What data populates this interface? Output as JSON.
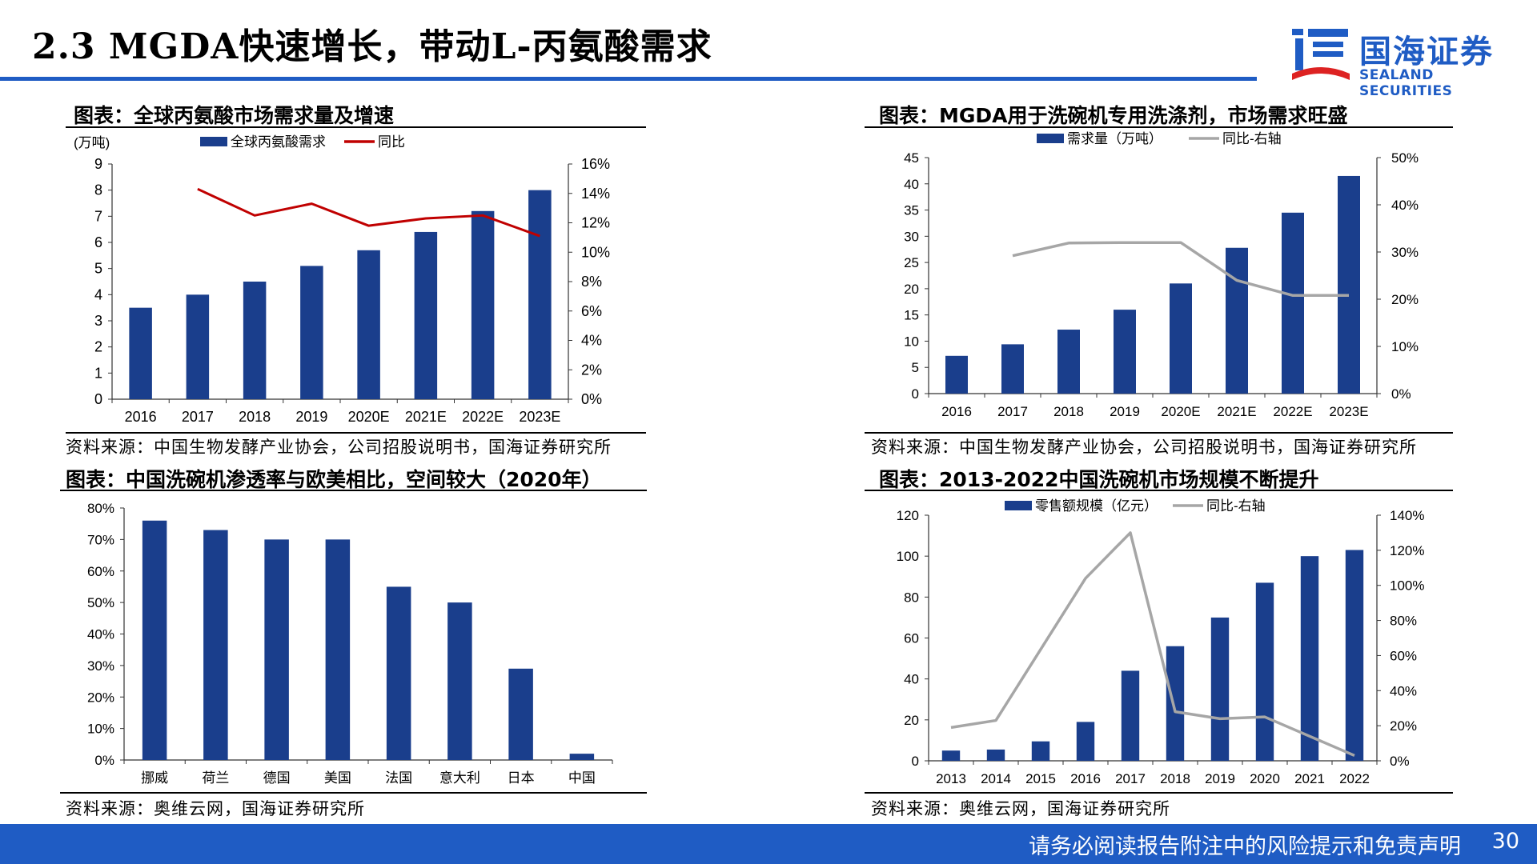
{
  "slide": {
    "title": "2.3 MGDA快速增长，带动L-丙氨酸需求",
    "logo_cn": "国海证券",
    "logo_en": "SEALAND SECURITIES",
    "footer": "请务必阅读报告附注中的风险提示和免责声明",
    "page": "30"
  },
  "colors": {
    "bar": "#1a3e8c",
    "accent": "#1f5cc4",
    "red_line": "#c00000",
    "gray_line": "#a6a6a6"
  },
  "panels": [
    {
      "title": "图表：全球丙氨酸市场需求量及增速",
      "source": "资料来源：中国生物发酵产业协会，公司招股说明书，国海证券研究所"
    },
    {
      "title": "图表：MGDA用于洗碗机专用洗涤剂，市场需求旺盛",
      "source": "资料来源：中国生物发酵产业协会，公司招股说明书，国海证券研究所"
    },
    {
      "title": "图表：中国洗碗机渗透率与欧美相比，空间较大（2020年）",
      "source": "资料来源：奥维云网，国海证券研究所"
    },
    {
      "title": "图表：2013-2022中国洗碗机市场规模不断提升",
      "source": "资料来源：奥维云网，国海证券研究所"
    }
  ],
  "chart_data": [
    {
      "type": "bar",
      "categories": [
        "2016",
        "2017",
        "2018",
        "2019",
        "2020E",
        "2021E",
        "2022E",
        "2023E"
      ],
      "series": [
        {
          "name": "全球丙氨酸需求",
          "type": "bar",
          "axis": "left",
          "values": [
            3.5,
            4.0,
            4.5,
            5.1,
            5.7,
            6.4,
            7.2,
            8.0
          ]
        },
        {
          "name": "同比",
          "type": "line",
          "axis": "right",
          "values": [
            null,
            14.3,
            12.5,
            13.3,
            11.8,
            12.3,
            12.5,
            11.1
          ]
        }
      ],
      "yunit": "(万吨)",
      "ylim": [
        0,
        9
      ],
      "yticks": [
        0,
        1,
        2,
        3,
        4,
        5,
        6,
        7,
        8,
        9
      ],
      "y2lim": [
        0,
        16
      ],
      "y2ticks": [
        "0%",
        "2%",
        "4%",
        "6%",
        "8%",
        "10%",
        "12%",
        "14%",
        "16%"
      ],
      "legend": "top"
    },
    {
      "type": "bar",
      "categories": [
        "2016",
        "2017",
        "2018",
        "2019",
        "2020E",
        "2021E",
        "2022E",
        "2023E"
      ],
      "series": [
        {
          "name": "需求量（万吨）",
          "type": "bar",
          "axis": "left",
          "values": [
            7.2,
            9.4,
            12.2,
            16.0,
            21.0,
            27.8,
            34.5,
            41.5
          ]
        },
        {
          "name": "同比-右轴",
          "type": "line",
          "axis": "right",
          "values": [
            null,
            29.2,
            31.9,
            32.0,
            32.0,
            24.0,
            20.8,
            20.8
          ]
        }
      ],
      "ylim": [
        0,
        45
      ],
      "yticks": [
        0,
        5,
        10,
        15,
        20,
        25,
        30,
        35,
        40,
        45
      ],
      "y2lim": [
        0,
        50
      ],
      "y2ticks": [
        "0%",
        "10%",
        "20%",
        "30%",
        "40%",
        "50%"
      ],
      "legend": "top"
    },
    {
      "type": "bar",
      "categories": [
        "挪威",
        "荷兰",
        "德国",
        "美国",
        "法国",
        "意大利",
        "日本",
        "中国"
      ],
      "series": [
        {
          "type": "bar",
          "axis": "left",
          "values": [
            76,
            73,
            70,
            70,
            55,
            50,
            29,
            2
          ]
        }
      ],
      "ylim": [
        0,
        80
      ],
      "yticks": [
        "0%",
        "10%",
        "20%",
        "30%",
        "40%",
        "50%",
        "60%",
        "70%",
        "80%"
      ]
    },
    {
      "type": "bar",
      "categories": [
        "2013",
        "2014",
        "2015",
        "2016",
        "2017",
        "2018",
        "2019",
        "2020",
        "2021",
        "2022"
      ],
      "series": [
        {
          "name": "零售额规模（亿元）",
          "type": "bar",
          "axis": "left",
          "values": [
            5,
            5.5,
            9.5,
            19,
            44,
            56,
            70,
            87,
            100,
            103
          ]
        },
        {
          "name": "同比-右轴",
          "type": "line",
          "axis": "right",
          "values": [
            19,
            23,
            null,
            104,
            130,
            28,
            24,
            25,
            14,
            3
          ]
        }
      ],
      "ylim": [
        0,
        120
      ],
      "yticks": [
        0,
        20,
        40,
        60,
        80,
        100,
        120
      ],
      "y2lim": [
        0,
        140
      ],
      "y2ticks": [
        "0%",
        "20%",
        "40%",
        "60%",
        "80%",
        "100%",
        "120%",
        "140%"
      ],
      "legend": "top"
    }
  ]
}
